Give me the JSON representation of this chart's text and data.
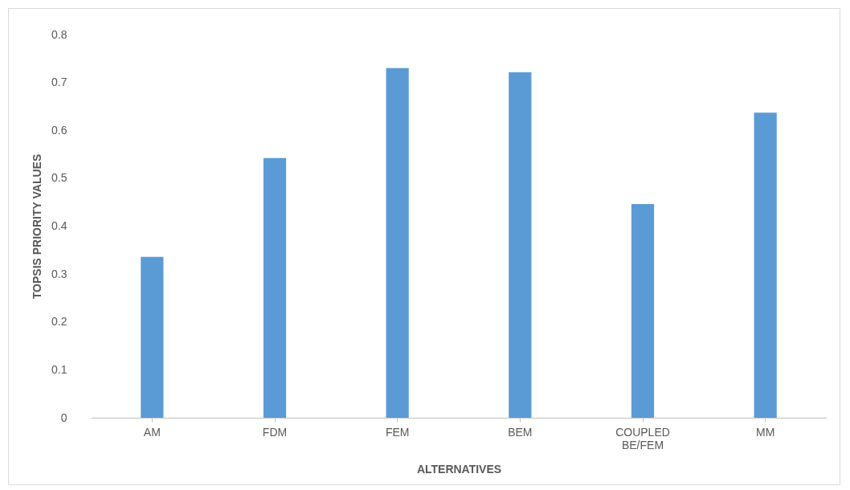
{
  "chart_data": {
    "type": "bar",
    "xlabel": "ALTERNATIVES",
    "ylabel": "TOPSIS PRIORITY VALUES",
    "categories": [
      "AM",
      "FDM",
      "FEM",
      "BEM",
      "COUPLED BE/FEM",
      "MM"
    ],
    "values": [
      0.336,
      0.542,
      0.73,
      0.721,
      0.446,
      0.637
    ],
    "color": "#5b9bd5",
    "ylim": [
      0,
      0.8
    ],
    "yticks": [
      0,
      0.1,
      0.2,
      0.3,
      0.4,
      0.5,
      0.6,
      0.7,
      0.8
    ],
    "grid": false
  }
}
